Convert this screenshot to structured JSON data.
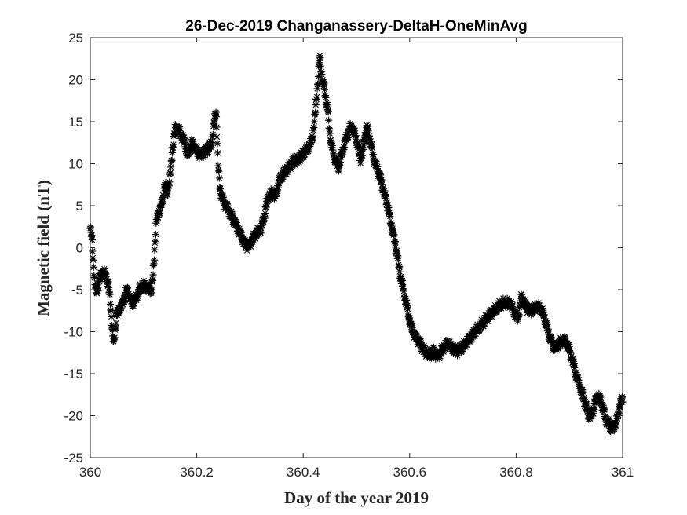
{
  "chart_data": {
    "type": "scatter",
    "title": "26-Dec-2019 Changanassery-DeltaH-OneMinAvg",
    "xlabel": "Day of the year 2019",
    "ylabel": "Magnetic field (nT)",
    "xlim": [
      360,
      361
    ],
    "ylim": [
      -25,
      25
    ],
    "xticks": [
      360,
      360.2,
      360.4,
      360.6,
      360.8,
      361
    ],
    "xtick_labels": [
      "360",
      "360.2",
      "360.4",
      "360.6",
      "360.8",
      "361"
    ],
    "yticks": [
      -25,
      -20,
      -15,
      -10,
      -5,
      0,
      5,
      10,
      15,
      20,
      25
    ],
    "ytick_labels": [
      "-25",
      "-20",
      "-15",
      "-10",
      "-5",
      "0",
      "5",
      "10",
      "15",
      "20",
      "25"
    ],
    "grid": false,
    "legend": "none",
    "marker": "asterisk",
    "color": "#000000",
    "trace": [
      [
        360.0,
        2.3
      ],
      [
        360.003,
        1.0
      ],
      [
        360.006,
        -2.0
      ],
      [
        360.009,
        -4.5
      ],
      [
        360.012,
        -5.3
      ],
      [
        360.016,
        -4.2
      ],
      [
        360.02,
        -3.2
      ],
      [
        360.025,
        -3.0
      ],
      [
        360.03,
        -3.4
      ],
      [
        360.034,
        -4.6
      ],
      [
        360.037,
        -6.0
      ],
      [
        360.04,
        -8.5
      ],
      [
        360.042,
        -10.5
      ],
      [
        360.044,
        -11.6
      ],
      [
        360.047,
        -9.5
      ],
      [
        360.05,
        -8.0
      ],
      [
        360.055,
        -7.2
      ],
      [
        360.06,
        -6.8
      ],
      [
        360.066,
        -5.5
      ],
      [
        360.07,
        -5.0
      ],
      [
        360.075,
        -6.2
      ],
      [
        360.08,
        -6.6
      ],
      [
        360.086,
        -6.0
      ],
      [
        360.092,
        -5.0
      ],
      [
        360.1,
        -4.5
      ],
      [
        360.108,
        -4.8
      ],
      [
        360.115,
        -5.0
      ],
      [
        360.118,
        -3.5
      ],
      [
        360.121,
        0.0
      ],
      [
        360.124,
        3.0
      ],
      [
        360.13,
        4.5
      ],
      [
        360.135,
        5.3
      ],
      [
        360.14,
        7.5
      ],
      [
        360.145,
        6.5
      ],
      [
        360.15,
        8.5
      ],
      [
        360.155,
        12.0
      ],
      [
        360.16,
        14.3
      ],
      [
        360.166,
        14.0
      ],
      [
        360.172,
        13.2
      ],
      [
        360.178,
        12.5
      ],
      [
        360.182,
        11.0
      ],
      [
        360.186,
        11.5
      ],
      [
        360.19,
        12.5
      ],
      [
        360.196,
        12.0
      ],
      [
        360.202,
        11.3
      ],
      [
        360.208,
        11.0
      ],
      [
        360.215,
        11.5
      ],
      [
        360.222,
        11.8
      ],
      [
        360.228,
        12.5
      ],
      [
        360.232,
        14.5
      ],
      [
        360.236,
        16.5
      ],
      [
        360.238,
        14.0
      ],
      [
        360.24,
        10.0
      ],
      [
        360.243,
        7.5
      ],
      [
        360.247,
        6.0
      ],
      [
        360.255,
        5.0
      ],
      [
        360.262,
        4.2
      ],
      [
        360.27,
        3.2
      ],
      [
        360.278,
        2.2
      ],
      [
        360.285,
        1.2
      ],
      [
        360.292,
        0.3
      ],
      [
        360.298,
        0.2
      ],
      [
        360.305,
        1.0
      ],
      [
        360.312,
        1.8
      ],
      [
        360.318,
        2.0
      ],
      [
        360.322,
        2.5
      ],
      [
        360.326,
        3.5
      ],
      [
        360.33,
        4.8
      ],
      [
        360.335,
        6.2
      ],
      [
        360.342,
        6.5
      ],
      [
        360.348,
        6.0
      ],
      [
        360.352,
        7.3
      ],
      [
        360.358,
        8.4
      ],
      [
        360.365,
        9.0
      ],
      [
        360.372,
        9.5
      ],
      [
        360.38,
        10.2
      ],
      [
        360.388,
        10.4
      ],
      [
        360.395,
        10.8
      ],
      [
        360.402,
        11.3
      ],
      [
        360.408,
        11.8
      ],
      [
        360.414,
        12.4
      ],
      [
        360.418,
        13.5
      ],
      [
        360.422,
        15.5
      ],
      [
        360.425,
        18.0
      ],
      [
        360.428,
        20.0
      ],
      [
        360.431,
        22.8
      ],
      [
        360.434,
        21.0
      ],
      [
        360.437,
        19.5
      ],
      [
        360.44,
        19.0
      ],
      [
        360.443,
        17.5
      ],
      [
        360.446,
        16.5
      ],
      [
        360.45,
        13.5
      ],
      [
        360.455,
        11.5
      ],
      [
        360.46,
        10.5
      ],
      [
        360.466,
        9.5
      ],
      [
        360.472,
        11.0
      ],
      [
        360.478,
        12.5
      ],
      [
        360.484,
        13.5
      ],
      [
        360.49,
        14.5
      ],
      [
        360.497,
        13.5
      ],
      [
        360.503,
        12.0
      ],
      [
        360.507,
        10.5
      ],
      [
        360.512,
        11.5
      ],
      [
        360.516,
        13.5
      ],
      [
        360.52,
        14.3
      ],
      [
        360.525,
        13.0
      ],
      [
        360.53,
        11.5
      ],
      [
        360.535,
        10.0
      ],
      [
        360.54,
        9.3
      ],
      [
        360.546,
        8.0
      ],
      [
        360.552,
        6.5
      ],
      [
        360.558,
        5.2
      ],
      [
        360.563,
        3.5
      ],
      [
        360.568,
        2.0
      ],
      [
        360.573,
        0.5
      ],
      [
        360.578,
        -1.5
      ],
      [
        360.583,
        -3.5
      ],
      [
        360.588,
        -5.0
      ],
      [
        360.593,
        -6.5
      ],
      [
        360.598,
        -8.0
      ],
      [
        360.603,
        -9.5
      ],
      [
        360.61,
        -10.5
      ],
      [
        360.616,
        -11.0
      ],
      [
        360.623,
        -11.8
      ],
      [
        360.63,
        -12.5
      ],
      [
        360.638,
        -12.8
      ],
      [
        360.645,
        -12.3
      ],
      [
        360.652,
        -13.0
      ],
      [
        360.658,
        -12.5
      ],
      [
        360.665,
        -11.8
      ],
      [
        360.672,
        -11.3
      ],
      [
        360.68,
        -12.0
      ],
      [
        360.69,
        -12.3
      ],
      [
        360.7,
        -11.8
      ],
      [
        360.71,
        -11.0
      ],
      [
        360.72,
        -10.2
      ],
      [
        360.73,
        -9.5
      ],
      [
        360.74,
        -8.8
      ],
      [
        360.75,
        -8.0
      ],
      [
        360.76,
        -7.4
      ],
      [
        360.77,
        -6.8
      ],
      [
        360.78,
        -6.5
      ],
      [
        360.79,
        -6.7
      ],
      [
        360.797,
        -7.8
      ],
      [
        360.803,
        -8.4
      ],
      [
        360.807,
        -7.0
      ],
      [
        360.81,
        -5.7
      ],
      [
        360.815,
        -6.6
      ],
      [
        360.822,
        -7.3
      ],
      [
        360.83,
        -7.5
      ],
      [
        360.838,
        -7.0
      ],
      [
        360.845,
        -7.2
      ],
      [
        360.852,
        -8.0
      ],
      [
        360.858,
        -9.5
      ],
      [
        360.864,
        -10.8
      ],
      [
        360.87,
        -11.8
      ],
      [
        360.877,
        -11.8
      ],
      [
        360.884,
        -11.2
      ],
      [
        360.89,
        -11.0
      ],
      [
        360.896,
        -11.5
      ],
      [
        360.902,
        -12.5
      ],
      [
        360.908,
        -14.0
      ],
      [
        360.914,
        -15.5
      ],
      [
        360.92,
        -16.5
      ],
      [
        360.926,
        -17.8
      ],
      [
        360.932,
        -19.0
      ],
      [
        360.938,
        -20.2
      ],
      [
        360.944,
        -19.5
      ],
      [
        360.95,
        -18.0
      ],
      [
        360.956,
        -17.8
      ],
      [
        360.962,
        -18.8
      ],
      [
        360.968,
        -20.3
      ],
      [
        360.974,
        -21.0
      ],
      [
        360.98,
        -21.6
      ],
      [
        360.986,
        -21.0
      ],
      [
        360.991,
        -20.2
      ],
      [
        360.995,
        -18.5
      ],
      [
        361.0,
        -18.2
      ]
    ]
  }
}
